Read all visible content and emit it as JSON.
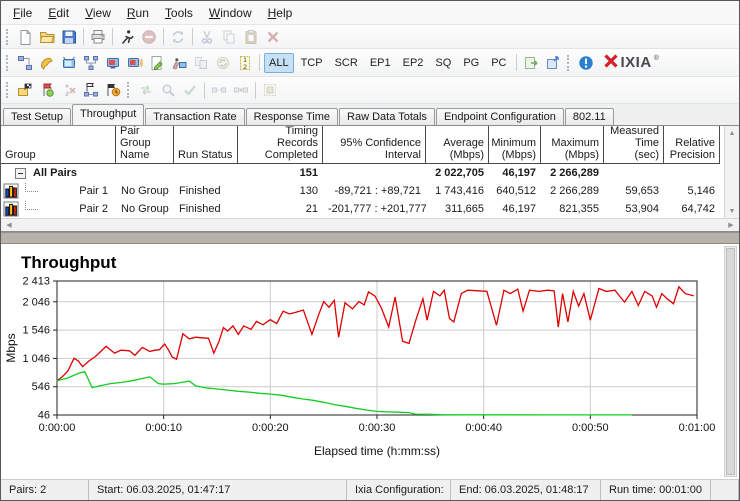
{
  "menu": {
    "items": [
      "File",
      "Edit",
      "View",
      "Run",
      "Tools",
      "Window",
      "Help"
    ]
  },
  "brand": {
    "logo_text": "IXIA",
    "trademark": "®"
  },
  "toolbar_rows": {
    "standard": [
      {
        "type": "grip"
      },
      {
        "type": "icon",
        "name": "new-document-icon",
        "enabled": true
      },
      {
        "type": "icon",
        "name": "open-folder-icon",
        "enabled": true
      },
      {
        "type": "icon",
        "name": "save-icon",
        "enabled": true
      },
      {
        "type": "sep"
      },
      {
        "type": "icon",
        "name": "print-icon",
        "enabled": true
      },
      {
        "type": "sep"
      },
      {
        "type": "icon",
        "name": "run-test-icon",
        "enabled": true
      },
      {
        "type": "icon",
        "name": "stop-test-icon",
        "enabled": false
      },
      {
        "type": "sep"
      },
      {
        "type": "icon",
        "name": "reload-pairs-icon",
        "enabled": false
      },
      {
        "type": "sep"
      },
      {
        "type": "icon",
        "name": "cut-icon",
        "enabled": false
      },
      {
        "type": "icon",
        "name": "copy-icon",
        "enabled": false
      },
      {
        "type": "icon",
        "name": "paste-icon",
        "enabled": false
      },
      {
        "type": "icon",
        "name": "delete-icon",
        "enabled": false
      }
    ],
    "pairs": [
      {
        "type": "grip"
      },
      {
        "type": "icon",
        "name": "add-pair-icon",
        "enabled": true
      },
      {
        "type": "icon",
        "name": "add-voip-pair-icon",
        "enabled": true
      },
      {
        "type": "icon",
        "name": "add-hardware-pair-icon",
        "enabled": true
      },
      {
        "type": "icon",
        "name": "add-multicast-group-icon",
        "enabled": true
      },
      {
        "type": "icon",
        "name": "add-video-pair-icon",
        "enabled": true
      },
      {
        "type": "icon",
        "name": "add-video-multicast-icon",
        "enabled": true
      },
      {
        "type": "icon",
        "name": "edit-pair-icon",
        "enabled": true
      },
      {
        "type": "icon",
        "name": "pair-wizard-icon",
        "enabled": true
      },
      {
        "type": "icon",
        "name": "copy-pair-icon",
        "enabled": false
      },
      {
        "type": "icon",
        "name": "refresh-pair-icon",
        "enabled": false
      },
      {
        "type": "icon",
        "name": "replicate-pair-icon",
        "enabled": true
      },
      {
        "type": "sep"
      },
      {
        "type": "text-button",
        "label": "ALL",
        "active": true
      },
      {
        "type": "text-button",
        "label": "TCP",
        "active": false
      },
      {
        "type": "text-button",
        "label": "SCR",
        "active": false
      },
      {
        "type": "text-button",
        "label": "EP1",
        "active": false
      },
      {
        "type": "text-button",
        "label": "EP2",
        "active": false
      },
      {
        "type": "text-button",
        "label": "SQ",
        "active": false
      },
      {
        "type": "text-button",
        "label": "PG",
        "active": false
      },
      {
        "type": "text-button",
        "label": "PC",
        "active": false
      },
      {
        "type": "sep"
      },
      {
        "type": "icon",
        "name": "export-results-icon",
        "enabled": true
      },
      {
        "type": "icon",
        "name": "export-config-icon",
        "enabled": true
      },
      {
        "type": "grip"
      },
      {
        "type": "icon",
        "name": "about-info-icon",
        "enabled": true
      },
      {
        "type": "logo"
      }
    ],
    "run": [
      {
        "type": "grip"
      },
      {
        "type": "icon",
        "name": "run-options-icon",
        "enabled": true
      },
      {
        "type": "icon",
        "name": "schedule-run-icon",
        "enabled": true
      },
      {
        "type": "icon",
        "name": "abort-run-icon",
        "enabled": false
      },
      {
        "type": "icon",
        "name": "run-selected-pairs-icon",
        "enabled": true
      },
      {
        "type": "icon",
        "name": "poll-endpoints-icon",
        "enabled": true
      },
      {
        "type": "grip"
      },
      {
        "type": "icon",
        "name": "swap-endpoints-icon",
        "enabled": false
      },
      {
        "type": "icon",
        "name": "view-endpoint-icon",
        "enabled": false
      },
      {
        "type": "icon",
        "name": "verify-pairs-icon",
        "enabled": false
      },
      {
        "type": "sep"
      },
      {
        "type": "icon",
        "name": "connect-pairs-icon",
        "enabled": false
      },
      {
        "type": "icon",
        "name": "disconnect-pairs-icon",
        "enabled": false
      },
      {
        "type": "sep"
      },
      {
        "type": "icon",
        "name": "group-pairs-icon",
        "enabled": false
      }
    ]
  },
  "tabs": {
    "items": [
      "Test Setup",
      "Throughput",
      "Transaction Rate",
      "Response Time",
      "Raw Data Totals",
      "Endpoint Configuration",
      "802.11"
    ],
    "active": "Throughput"
  },
  "table": {
    "columns": [
      {
        "label": "Group",
        "width": 115,
        "align": "left"
      },
      {
        "label": "Pair Group\nName",
        "width": 58,
        "align": "left"
      },
      {
        "label": "Run Status",
        "width": 64,
        "align": "left"
      },
      {
        "label": "Timing Records\nCompleted",
        "width": 85,
        "align": "right"
      },
      {
        "label": "95% Confidence\nInterval",
        "width": 103,
        "align": "right"
      },
      {
        "label": "Average\n(Mbps)",
        "width": 63,
        "align": "right"
      },
      {
        "label": "Minimum\n(Mbps)",
        "width": 52,
        "align": "right"
      },
      {
        "label": "Maximum\n(Mbps)",
        "width": 63,
        "align": "right"
      },
      {
        "label": "Measured\nTime (sec)",
        "width": 60,
        "align": "right"
      },
      {
        "label": "Relative\nPrecision",
        "width": 56,
        "align": "right"
      }
    ],
    "rows": [
      {
        "kind": "all-pairs",
        "cells": [
          "All Pairs",
          "",
          "",
          "151",
          "",
          "2 022,705",
          "46,197",
          "2 266,289",
          "",
          ""
        ]
      },
      {
        "kind": "pair",
        "icon": "pair-chart-icon",
        "cells": [
          "Pair 1",
          "No Group",
          "Finished",
          "130",
          "-89,721 : +89,721",
          "1 743,416",
          "640,512",
          "2 266,289",
          "59,653",
          "5,146"
        ]
      },
      {
        "kind": "pair",
        "icon": "pair-chart-icon",
        "cells": [
          "Pair 2",
          "No Group",
          "Finished",
          "21",
          "-201,777 : +201,777",
          "311,665",
          "46,197",
          "821,355",
          "53,904",
          "64,742"
        ]
      }
    ]
  },
  "chart_data": {
    "type": "line",
    "title": "Throughput",
    "ylabel": "Mbps",
    "xlabel": "Elapsed time (h:mm:ss)",
    "ylim": [
      46,
      2413
    ],
    "yticks": [
      46,
      546,
      1046,
      1546,
      2046,
      2413
    ],
    "ytick_labels": [
      "46",
      "546",
      "1 046",
      "1 546",
      "2 046",
      "2 413"
    ],
    "xlim_seconds": [
      0,
      60
    ],
    "xticks_seconds": [
      0,
      10,
      20,
      30,
      40,
      50,
      60
    ],
    "xtick_labels": [
      "0:00:00",
      "0:00:10",
      "0:00:20",
      "0:00:30",
      "0:00:40",
      "0:00:50",
      "0:01:00"
    ],
    "grid": true,
    "legend": "none",
    "series": [
      {
        "name": "Pair 1",
        "color": "#dd0000",
        "points": [
          [
            0,
            650
          ],
          [
            0.5,
            720
          ],
          [
            1,
            820
          ],
          [
            1.6,
            1050
          ],
          [
            2,
            1000
          ],
          [
            2.4,
            900
          ],
          [
            3,
            1000
          ],
          [
            3.6,
            1080
          ],
          [
            4,
            1150
          ],
          [
            4.6,
            1260
          ],
          [
            5,
            1200
          ],
          [
            5.4,
            1140
          ],
          [
            6,
            1190
          ],
          [
            6.8,
            1180
          ],
          [
            7.3,
            1100
          ],
          [
            8,
            1240
          ],
          [
            8.7,
            1170
          ],
          [
            9.2,
            1190
          ],
          [
            9.6,
            1200
          ],
          [
            10.1,
            1300
          ],
          [
            10.5,
            1180
          ],
          [
            10.8,
            1070
          ],
          [
            11.2,
            1030
          ],
          [
            11.8,
            1480
          ],
          [
            12.4,
            1390
          ],
          [
            13,
            1420
          ],
          [
            13.6,
            1410
          ],
          [
            14.2,
            1400
          ],
          [
            14.7,
            1140
          ],
          [
            15.2,
            1350
          ],
          [
            15.6,
            1590
          ],
          [
            16,
            1530
          ],
          [
            16.5,
            1620
          ],
          [
            17,
            1470
          ],
          [
            17.5,
            1620
          ],
          [
            18.2,
            1560
          ],
          [
            18.7,
            1700
          ],
          [
            19.3,
            1640
          ],
          [
            20,
            1730
          ],
          [
            20.6,
            1660
          ],
          [
            21.2,
            1880
          ],
          [
            21.8,
            1830
          ],
          [
            22.4,
            1860
          ],
          [
            23.1,
            1900
          ],
          [
            23.9,
            1470
          ],
          [
            24.5,
            1800
          ],
          [
            25,
            2050
          ],
          [
            25.5,
            1950
          ],
          [
            26,
            2070
          ],
          [
            26.4,
            1420
          ],
          [
            27,
            2030
          ],
          [
            27.7,
            1920
          ],
          [
            28.3,
            2050
          ],
          [
            28.8,
            1990
          ],
          [
            29.2,
            2220
          ],
          [
            29.8,
            2150
          ],
          [
            30.4,
            1940
          ],
          [
            31.1,
            1600
          ],
          [
            31.7,
            2130
          ],
          [
            32.4,
            1350
          ],
          [
            33,
            1310
          ],
          [
            33.6,
            1700
          ],
          [
            34.3,
            2100
          ],
          [
            34.7,
            1720
          ],
          [
            35.3,
            2230
          ],
          [
            35.9,
            2150
          ],
          [
            36.3,
            2250
          ],
          [
            36.8,
            1750
          ],
          [
            37.2,
            1690
          ],
          [
            37.9,
            2190
          ],
          [
            38.5,
            2250
          ],
          [
            39.5,
            2240
          ],
          [
            40.3,
            2230
          ],
          [
            41.2,
            1630
          ],
          [
            41.9,
            2250
          ],
          [
            42.5,
            2190
          ],
          [
            43.2,
            2270
          ],
          [
            43.7,
            1880
          ],
          [
            44.3,
            2250
          ],
          [
            45.2,
            2230
          ],
          [
            46,
            2250
          ],
          [
            46.6,
            2240
          ],
          [
            47,
            1600
          ],
          [
            47.4,
            2190
          ],
          [
            47.9,
            1690
          ],
          [
            48.4,
            2230
          ],
          [
            48.9,
            1970
          ],
          [
            49.4,
            2190
          ],
          [
            50,
            1720
          ],
          [
            50.8,
            2280
          ],
          [
            51.5,
            2230
          ],
          [
            52.3,
            2250
          ],
          [
            53.2,
            2040
          ],
          [
            53.9,
            2230
          ],
          [
            54.5,
            1980
          ],
          [
            55.1,
            2230
          ],
          [
            55.8,
            2150
          ],
          [
            56.2,
            1950
          ],
          [
            56.7,
            2190
          ],
          [
            57.2,
            2100
          ],
          [
            57.8,
            2010
          ],
          [
            58.3,
            2310
          ],
          [
            58.9,
            2190
          ],
          [
            59.7,
            2150
          ]
        ]
      },
      {
        "name": "Pair 2",
        "color": "#12cc24",
        "points": [
          [
            0,
            650
          ],
          [
            1,
            700
          ],
          [
            2,
            780
          ],
          [
            2.6,
            810
          ],
          [
            3.3,
            530
          ],
          [
            4,
            560
          ],
          [
            5,
            600
          ],
          [
            6,
            620
          ],
          [
            7,
            650
          ],
          [
            8,
            690
          ],
          [
            8.7,
            720
          ],
          [
            9.5,
            600
          ],
          [
            10,
            590
          ],
          [
            11,
            600
          ],
          [
            12,
            630
          ],
          [
            12.4,
            645
          ],
          [
            13,
            560
          ],
          [
            14,
            525
          ],
          [
            15,
            505
          ],
          [
            16,
            485
          ],
          [
            17,
            465
          ],
          [
            18,
            450
          ],
          [
            19,
            430
          ],
          [
            20,
            415
          ],
          [
            21,
            395
          ],
          [
            22,
            360
          ],
          [
            23,
            330
          ],
          [
            24,
            305
          ],
          [
            25,
            270
          ],
          [
            26,
            230
          ],
          [
            27,
            200
          ],
          [
            28,
            165
          ],
          [
            29,
            135
          ],
          [
            30,
            110
          ],
          [
            31,
            100
          ],
          [
            32,
            95
          ],
          [
            33,
            88
          ],
          [
            33.6,
            62
          ],
          [
            35,
            58
          ],
          [
            36,
            52
          ],
          [
            38,
            50
          ],
          [
            42,
            49
          ],
          [
            46,
            48
          ],
          [
            50,
            48
          ],
          [
            53.9,
            47
          ]
        ]
      }
    ]
  },
  "statusbar": {
    "cells": [
      "Pairs: 2",
      "Start: 06.03.2025, 01:47:17",
      "Ixia Configuration:",
      "End: 06.03.2025, 01:48:17",
      "Run time: 00:01:00"
    ]
  }
}
